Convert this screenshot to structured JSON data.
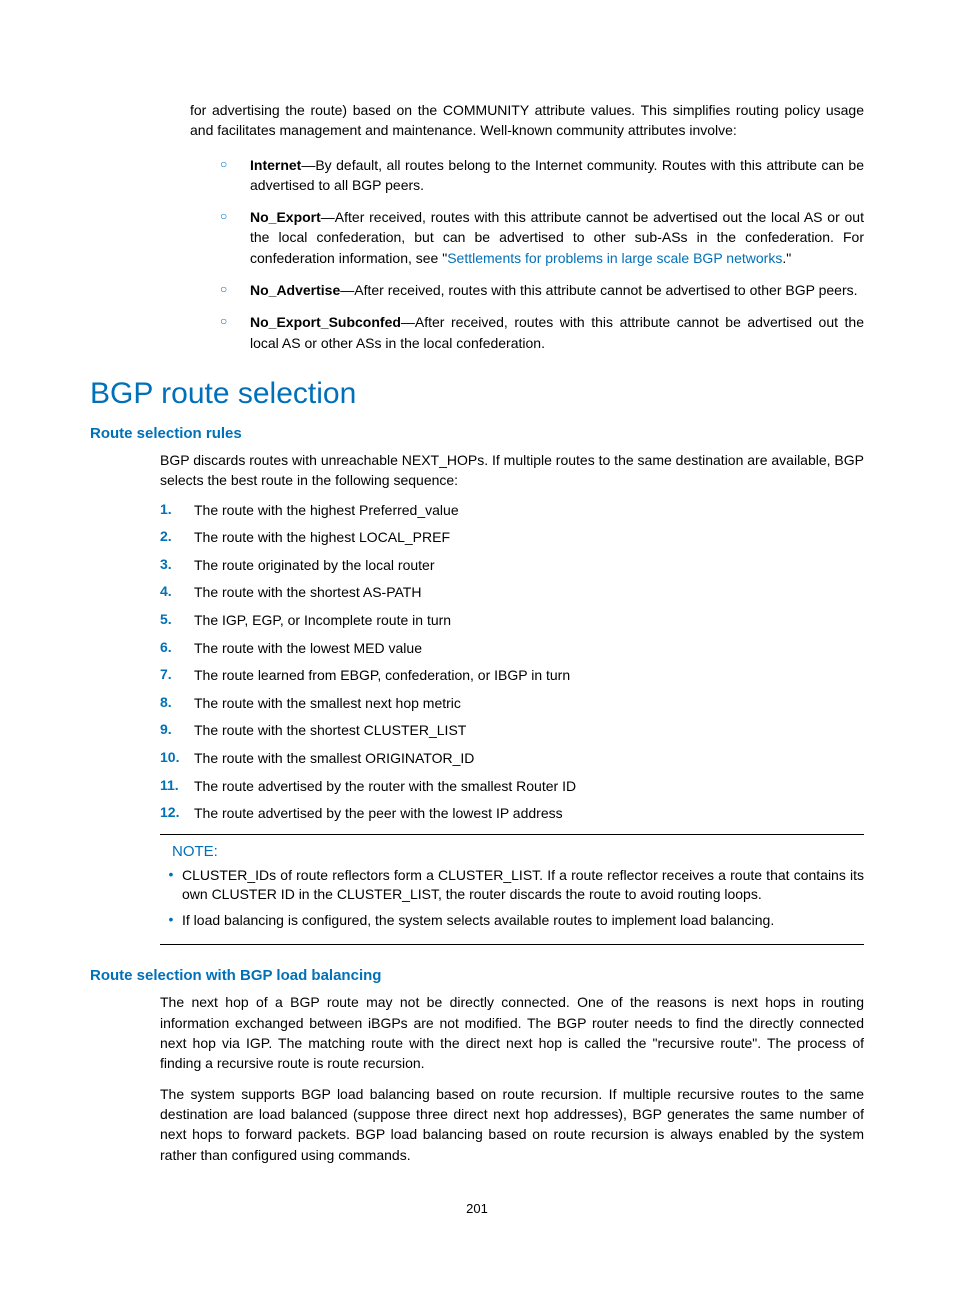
{
  "intro_paragraph": "for advertising the route) based on the COMMUNITY attribute values. This simplifies routing policy usage and facilitates management and maintenance. Well-known community attributes involve:",
  "community_items": [
    {
      "label": "Internet",
      "text": "—By default, all routes belong to the Internet community. Routes with this attribute can be advertised to all BGP peers."
    },
    {
      "label": "No_Export",
      "text_before_link": "—After received, routes with this attribute cannot be advertised out the local AS or out the local confederation, but can be advertised to other sub-ASs in the confederation. For confederation information, see \"",
      "link_text": "Settlements for problems in large scale BGP networks",
      "text_after_link": ".\""
    },
    {
      "label": "No_Advertise",
      "text": "—After received, routes with this attribute cannot be advertised to other BGP peers."
    },
    {
      "label": "No_Export_Subconfed",
      "text": "—After received, routes with this attribute cannot be advertised out the local AS or other ASs in the local confederation."
    }
  ],
  "heading1": "BGP route selection",
  "subheading1": "Route selection rules",
  "rules_intro": "BGP discards routes with unreachable NEXT_HOPs. If multiple routes to the same destination are available, BGP selects the best route in the following sequence:",
  "rules": [
    "The route with the highest Preferred_value",
    "The route with the highest LOCAL_PREF",
    "The route originated by the local router",
    "The route with the shortest AS-PATH",
    "The IGP, EGP, or Incomplete route in turn",
    "The route with the lowest MED value",
    "The route learned from EBGP, confederation, or IBGP in turn",
    "The route with the smallest next hop metric",
    "The route with the shortest CLUSTER_LIST",
    "The route with the smallest ORIGINATOR_ID",
    "The route advertised by the router with the smallest Router ID",
    "The route advertised by the peer with the lowest IP address"
  ],
  "note_title": "NOTE:",
  "note_items": [
    "CLUSTER_IDs of route reflectors form a CLUSTER_LIST. If a route reflector receives a route that contains its own CLUSTER ID in the CLUSTER_LIST, the router discards the route to avoid routing loops.",
    "If load balancing is configured, the system selects available routes to implement load balancing."
  ],
  "subheading2": "Route selection with BGP load balancing",
  "lb_para1": "The next hop of a BGP route may not be directly connected. One of the reasons is next hops in routing information exchanged between iBGPs are not modified. The BGP router needs to find the directly connected next hop via IGP. The matching route with the direct next hop is called the \"recursive route\". The process of finding a recursive route is route recursion.",
  "lb_para2": "The system supports BGP load balancing based on route recursion. If multiple recursive routes to the same destination are load balanced (suppose three direct next hop addresses), BGP generates the same number of next hops to forward packets. BGP load balancing based on route recursion is always enabled by the system rather than configured using commands.",
  "page_number": "201",
  "colors": {
    "accent": "#0070b8",
    "text": "#000000",
    "background": "#ffffff"
  }
}
